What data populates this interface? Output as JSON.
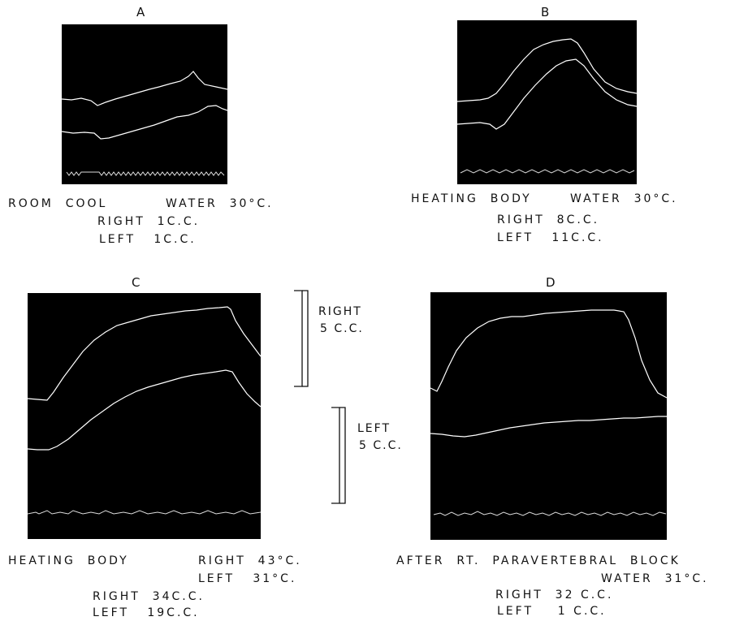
{
  "panels": {
    "A": {
      "letter": "A",
      "caption_line1_left": "ROOM  COOL",
      "caption_line1_right": "WATER  30°C.",
      "right_line": "RIGHT  1C.C.",
      "left_line": "LEFT   1C.C."
    },
    "B": {
      "letter": "B",
      "caption_line1_left": "HEATING  BODY",
      "caption_line1_right": "WATER  30°C.",
      "right_line": "RIGHT  8C.C.",
      "left_line": "LEFT   11C.C."
    },
    "C": {
      "letter": "C",
      "caption_line1_left": "HEATING  BODY",
      "caption_line1_right": "RIGHT  43°C.",
      "caption_line2_right": "LEFT   31°C.",
      "right_line": "RIGHT  34C.C.",
      "left_line": "LEFT   19C.C."
    },
    "D": {
      "letter": "D",
      "caption_line1": "AFTER  RT.  PARAVERTEBRAL  BLOCK",
      "caption_line2_right": "WATER  31°C.",
      "right_line": "RIGHT  32 C.C.",
      "left_line": "LEFT    1 C.C."
    }
  },
  "scale": {
    "right_label_1": "RIGHT",
    "right_label_2": "5 C.C.",
    "left_label_1": "LEFT",
    "left_label_2": "5 C.C."
  }
}
